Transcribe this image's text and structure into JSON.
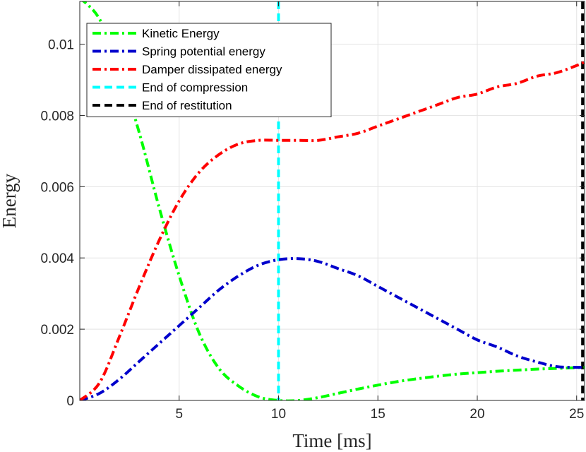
{
  "chart_data": {
    "type": "line",
    "xlabel": "Time [ms]",
    "ylabel": "Energy",
    "xlim": [
      0,
      25.4
    ],
    "ylim": [
      0,
      0.0112
    ],
    "grid": true,
    "legend_position": "top-left",
    "x_ticks": [
      5,
      10,
      15,
      20,
      25
    ],
    "x_tick_labels": [
      "5",
      "10",
      "15",
      "20",
      "25"
    ],
    "y_ticks": [
      0,
      0.002,
      0.004,
      0.006,
      0.008,
      0.01
    ],
    "y_tick_labels": [
      "0",
      "0.002",
      "0.004",
      "0.006",
      "0.008",
      "0.01"
    ],
    "series": [
      {
        "name": "Kinetic Energy",
        "color": "#00ff00",
        "style": "dash-dot",
        "x": [
          0,
          1,
          2,
          3,
          4,
          5,
          6,
          7,
          8,
          9,
          10,
          11,
          12,
          13,
          14,
          15,
          16,
          17,
          18,
          19,
          20,
          21,
          22,
          23,
          24,
          25,
          25.4
        ],
        "y": [
          0.0113,
          0.0107,
          0.0093,
          0.0075,
          0.0054,
          0.0035,
          0.0019,
          0.0009,
          0.0004,
          0.0001,
          0.0,
          0.0,
          8e-05,
          0.0002,
          0.00032,
          0.00043,
          0.00053,
          0.00061,
          0.00068,
          0.00074,
          0.00078,
          0.00082,
          0.00085,
          0.00088,
          0.0009,
          0.00092,
          0.00093
        ]
      },
      {
        "name": "Spring potential energy",
        "color": "#0000cc",
        "style": "dash-dot",
        "x": [
          0,
          1,
          2,
          3,
          4,
          5,
          6,
          7,
          8,
          9,
          10,
          11,
          12,
          13,
          14,
          15,
          16,
          17,
          18,
          19,
          20,
          21,
          22,
          23,
          24,
          25,
          25.4
        ],
        "y": [
          0.0,
          0.0002,
          0.0006,
          0.0011,
          0.0016,
          0.0021,
          0.0026,
          0.0031,
          0.0035,
          0.0038,
          0.00395,
          0.00398,
          0.0039,
          0.0037,
          0.0035,
          0.0032,
          0.0029,
          0.0026,
          0.0023,
          0.002,
          0.0017,
          0.0015,
          0.00125,
          0.00108,
          0.00095,
          0.00093,
          0.00093
        ]
      },
      {
        "name": "Damper dissipated energy",
        "color": "#ff0000",
        "style": "dash-dot",
        "x": [
          0,
          1,
          2,
          3,
          4,
          5,
          6,
          7,
          8,
          9,
          10,
          11,
          12,
          13,
          14,
          15,
          16,
          17,
          18,
          19,
          20,
          21,
          22,
          23,
          24,
          25,
          25.4
        ],
        "y": [
          0.0,
          0.0005,
          0.0018,
          0.0032,
          0.0045,
          0.0056,
          0.0064,
          0.0069,
          0.0072,
          0.0073,
          0.0073,
          0.0073,
          0.0073,
          0.0074,
          0.0075,
          0.0077,
          0.0079,
          0.0081,
          0.0083,
          0.0085,
          0.0086,
          0.0088,
          0.0089,
          0.0091,
          0.0092,
          0.0094,
          0.0095
        ]
      }
    ],
    "vertical_lines": [
      {
        "name": "End of compression",
        "x": 10,
        "color": "#00ffff",
        "style": "dashed"
      },
      {
        "name": "End of restitution",
        "x": 25.3,
        "color": "#000000",
        "style": "dashed"
      }
    ]
  }
}
